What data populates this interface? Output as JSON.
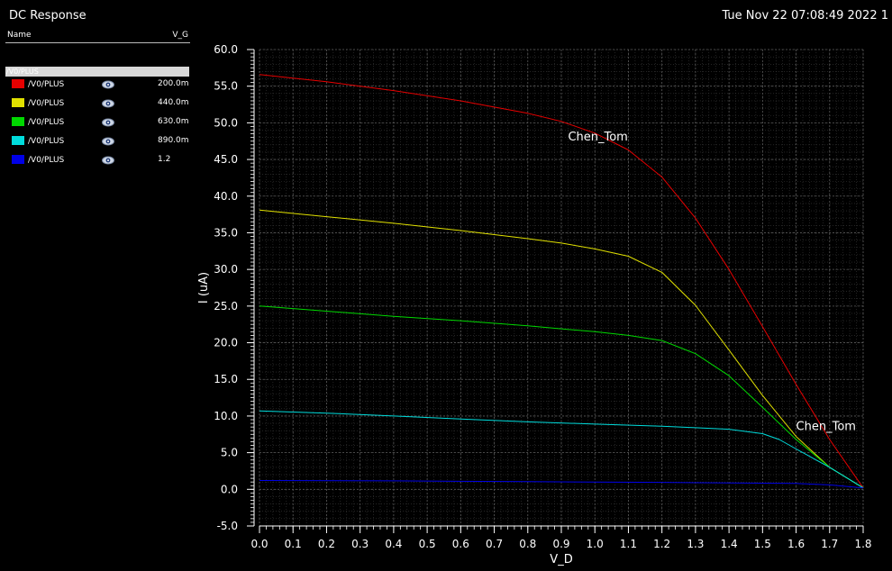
{
  "window": {
    "title": "DC Response",
    "timestamp": "Tue Nov 22 07:08:49 2022  1"
  },
  "legend": {
    "name_header": "Name",
    "value_header": "V_G",
    "group_label": "/V0/PLUS",
    "items": [
      {
        "label": "/V0/PLUS",
        "value": "200.0m",
        "color": "#e60000",
        "icon": "eye-icon"
      },
      {
        "label": "/V0/PLUS",
        "value": "440.0m",
        "color": "#e0e000",
        "icon": "eye-icon"
      },
      {
        "label": "/V0/PLUS",
        "value": "630.0m",
        "color": "#00d800",
        "icon": "eye-icon"
      },
      {
        "label": "/V0/PLUS",
        "value": "890.0m",
        "color": "#00dcdc",
        "icon": "eye-icon"
      },
      {
        "label": "/V0/PLUS",
        "value": "1.2",
        "color": "#0000e6",
        "icon": "eye-icon"
      }
    ]
  },
  "chart_data": {
    "type": "line",
    "xlabel": "V_D",
    "ylabel": "I (uA)",
    "xlim": [
      0.0,
      1.8
    ],
    "ylim": [
      -5.0,
      60.0
    ],
    "xticks": [
      "0.0",
      "0.1",
      "0.2",
      "0.3",
      "0.4",
      "0.5",
      "0.6",
      "0.7",
      "0.8",
      "0.9",
      "1.0",
      "1.1",
      "1.2",
      "1.3",
      "1.4",
      "1.5",
      "1.6",
      "1.7",
      "1.8"
    ],
    "yticks": [
      "-5.0",
      "0.0",
      "5.0",
      "10.0",
      "15.0",
      "20.0",
      "25.0",
      "30.0",
      "35.0",
      "40.0",
      "45.0",
      "50.0",
      "55.0",
      "60.0"
    ],
    "grid": true,
    "annotations": [
      {
        "text": "Chen_Tom",
        "x": 0.92,
        "y": 47.6
      },
      {
        "text": "Chen_Tom",
        "x": 1.6,
        "y": 8.1
      }
    ],
    "series": [
      {
        "name": "/V0/PLUS",
        "color": "#e60000",
        "x": [
          0.0,
          0.2,
          0.4,
          0.6,
          0.8,
          0.9,
          1.0,
          1.1,
          1.2,
          1.3,
          1.4,
          1.5,
          1.6,
          1.7,
          1.8
        ],
        "y": [
          56.6,
          55.6,
          54.4,
          53.0,
          51.3,
          50.2,
          48.6,
          46.3,
          42.6,
          37.0,
          30.0,
          22.2,
          14.3,
          6.8,
          0.2
        ]
      },
      {
        "name": "/V0/PLUS",
        "color": "#e0e000",
        "x": [
          0.0,
          0.2,
          0.4,
          0.6,
          0.8,
          0.9,
          1.0,
          1.1,
          1.2,
          1.3,
          1.4,
          1.5,
          1.6,
          1.7,
          1.8
        ],
        "y": [
          38.1,
          37.2,
          36.3,
          35.3,
          34.2,
          33.6,
          32.8,
          31.8,
          29.6,
          25.1,
          19.0,
          12.8,
          7.2,
          3.0,
          0.2
        ]
      },
      {
        "name": "/V0/PLUS",
        "color": "#00d800",
        "x": [
          0.0,
          0.2,
          0.4,
          0.6,
          0.8,
          0.9,
          1.0,
          1.1,
          1.2,
          1.3,
          1.4,
          1.5,
          1.6,
          1.7,
          1.8
        ],
        "y": [
          25.0,
          24.3,
          23.6,
          23.0,
          22.3,
          21.9,
          21.5,
          21.0,
          20.3,
          18.5,
          15.5,
          11.2,
          6.8,
          3.0,
          0.2
        ]
      },
      {
        "name": "/V0/PLUS",
        "color": "#00dcdc",
        "x": [
          0.0,
          0.2,
          0.4,
          0.6,
          0.8,
          1.0,
          1.2,
          1.3,
          1.4,
          1.5,
          1.55,
          1.6,
          1.7,
          1.8
        ],
        "y": [
          10.7,
          10.4,
          10.0,
          9.6,
          9.2,
          8.9,
          8.6,
          8.4,
          8.2,
          7.6,
          6.8,
          5.5,
          3.0,
          0.2
        ]
      },
      {
        "name": "/V0/PLUS",
        "color": "#0000e6",
        "x": [
          0.0,
          0.4,
          0.8,
          1.2,
          1.6,
          1.7,
          1.8
        ],
        "y": [
          1.2,
          1.15,
          1.05,
          0.95,
          0.8,
          0.6,
          0.2
        ]
      }
    ]
  }
}
